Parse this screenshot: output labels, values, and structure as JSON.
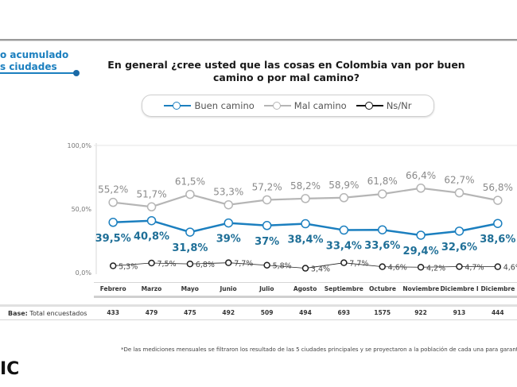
{
  "section_label": {
    "line1": "o acumulado",
    "line2": "s ciudades"
  },
  "logo_text": "IC",
  "footnote": "*De las mediciones mensuales se filtraron los resultado de las 5 ciudades principales y se proyectaron a la población de cada una para garantiz",
  "table": {
    "base_label_bold": "Base:",
    "base_label_rest": " Total encuestados",
    "base_values": [
      "433",
      "479",
      "475",
      "492",
      "509",
      "494",
      "693",
      "1575",
      "922",
      "913",
      "444"
    ]
  },
  "colors": {
    "buen": "#1b7fbf",
    "mal": "#b5b5b5",
    "ns": "#222222"
  },
  "chart_data": {
    "type": "line",
    "title": "En general ¿cree usted que las cosas en Colombia van por buen camino o por mal camino?",
    "xlabel": "",
    "ylabel": "",
    "ylim": [
      0,
      100
    ],
    "yticks": [
      "100,0%",
      "50,0%",
      "0,0%"
    ],
    "ytick_values": [
      100,
      50,
      0
    ],
    "legend_position": "top",
    "categories": [
      "Febrero",
      "Marzo",
      "Mayo",
      "Junio",
      "Julio",
      "Agosto",
      "Septiembre",
      "Octubre",
      "Noviembre",
      "Diciembre I",
      "Diciembre"
    ],
    "series": [
      {
        "name": "Buen camino",
        "values": [
          39.5,
          40.8,
          31.8,
          39,
          37,
          38.4,
          33.4,
          33.6,
          29.4,
          32.6,
          38.6
        ],
        "labels": [
          "39,5%",
          "40,8%",
          "31,8%",
          "39%",
          "37%",
          "38,4%",
          "33,4%",
          "33,6%",
          "29,4%",
          "32,6%",
          "38,6%"
        ]
      },
      {
        "name": "Mal camino",
        "values": [
          55.2,
          51.7,
          61.5,
          53.3,
          57.2,
          58.2,
          58.9,
          61.8,
          66.4,
          62.7,
          56.8
        ],
        "labels": [
          "55,2%",
          "51,7%",
          "61,5%",
          "53,3%",
          "57,2%",
          "58,2%",
          "58,9%",
          "61,8%",
          "66,4%",
          "62,7%",
          "56,8%"
        ]
      },
      {
        "name": "Ns/Nr",
        "values": [
          5.3,
          7.5,
          6.8,
          7.7,
          5.8,
          3.4,
          7.7,
          4.6,
          4.2,
          4.7,
          4.6
        ],
        "labels": [
          "5,3%",
          "7,5%",
          "6,8%",
          "7,7%",
          "5,8%",
          "3,4%",
          "7,7%",
          "4,6%",
          "4,2%",
          "4,7%",
          "4,6%"
        ]
      }
    ]
  }
}
